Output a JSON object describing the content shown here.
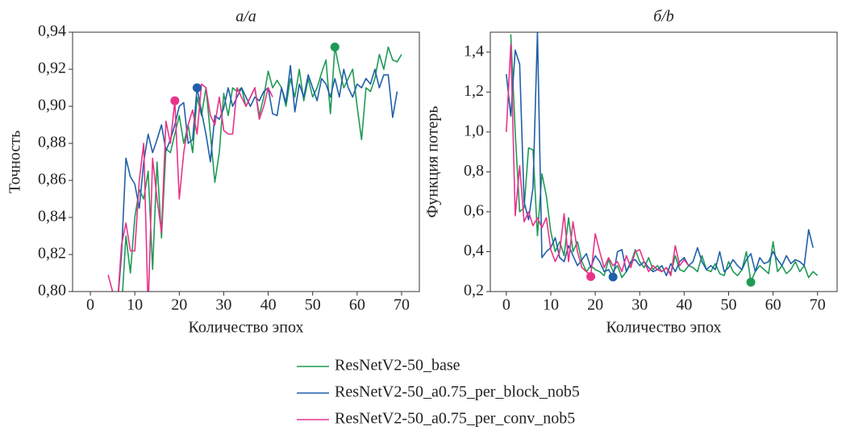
{
  "chart_data": [
    {
      "type": "line",
      "title": "a/a",
      "xlabel": "Количество эпох",
      "ylabel": "Точность",
      "x": [
        0,
        1,
        2,
        3,
        4,
        5,
        6,
        7,
        8,
        9,
        10,
        11,
        12,
        13,
        14,
        15,
        16,
        17,
        18,
        19,
        20,
        21,
        22,
        23,
        24,
        25,
        26,
        27,
        28,
        29,
        30,
        31,
        32,
        33,
        34,
        35,
        36,
        37,
        38,
        39,
        40,
        41,
        42,
        43,
        44,
        45,
        46,
        47,
        48,
        49,
        50,
        51,
        52,
        53,
        54,
        55,
        56,
        57,
        58,
        59,
        60,
        61,
        62,
        63,
        64,
        65,
        66,
        67,
        68,
        69,
        70
      ],
      "series": [
        {
          "name": "ResNetV2-50_base",
          "color": "#1f9a55",
          "values": [
            null,
            null,
            null,
            null,
            null,
            null,
            null,
            0.79,
            0.83,
            0.81,
            0.84,
            0.855,
            0.85,
            0.865,
            0.812,
            0.87,
            0.829,
            0.877,
            0.875,
            0.885,
            0.895,
            0.88,
            0.89,
            0.875,
            0.905,
            0.895,
            0.91,
            0.885,
            0.859,
            0.875,
            0.907,
            0.895,
            0.91,
            0.908,
            0.91,
            0.9,
            0.905,
            0.91,
            0.895,
            0.905,
            0.919,
            0.91,
            0.914,
            0.91,
            0.9,
            0.915,
            0.905,
            0.92,
            0.903,
            0.915,
            0.905,
            0.91,
            0.918,
            0.925,
            0.896,
            0.932,
            0.92,
            0.91,
            0.915,
            0.92,
            0.9,
            0.882,
            0.91,
            0.908,
            0.915,
            0.928,
            0.92,
            0.932,
            0.925,
            0.924,
            0.928
          ]
        },
        {
          "name": "ResNetV2-50_a0.75_per_block_nob5",
          "color": "#1f5fa8",
          "values": [
            null,
            null,
            null,
            null,
            null,
            null,
            0.79,
            0.82,
            0.872,
            0.862,
            0.858,
            0.845,
            0.87,
            0.885,
            0.875,
            0.882,
            0.89,
            0.876,
            0.882,
            0.89,
            0.9,
            0.902,
            0.88,
            0.882,
            0.91,
            0.897,
            0.885,
            0.87,
            0.895,
            0.893,
            0.899,
            0.91,
            0.9,
            0.905,
            0.91,
            0.905,
            0.9,
            0.905,
            0.903,
            0.908,
            0.91,
            0.896,
            0.895,
            0.91,
            0.902,
            0.922,
            0.897,
            0.912,
            0.905,
            0.917,
            0.91,
            0.903,
            0.915,
            0.912,
            0.905,
            0.915,
            0.905,
            0.92,
            0.91,
            0.905,
            0.912,
            0.91,
            0.915,
            0.912,
            0.92,
            0.91,
            0.917,
            0.917,
            0.894,
            0.908,
            null
          ]
        },
        {
          "name": "ResNetV2-50_a0.75_per_conv_nob5",
          "color": "#e8338a",
          "values": [
            null,
            null,
            null,
            null,
            0.809,
            0.8,
            0.79,
            0.825,
            0.837,
            0.822,
            0.822,
            0.86,
            0.88,
            0.79,
            0.872,
            0.85,
            0.832,
            0.892,
            0.88,
            0.903,
            0.85,
            0.875,
            0.89,
            0.898,
            0.885,
            0.912,
            0.91,
            0.895,
            0.89,
            0.905,
            0.887,
            0.885,
            0.885,
            0.91,
            0.905,
            0.9,
            0.905,
            0.91,
            0.893,
            0.9,
            0.91,
            0.905,
            null,
            null,
            null,
            null,
            null,
            null,
            null,
            null,
            null,
            null,
            null,
            null,
            null,
            null,
            null,
            null,
            null,
            null,
            null,
            null,
            null,
            null,
            null,
            null,
            null,
            null,
            null,
            null,
            null
          ]
        }
      ],
      "markers": [
        {
          "x": 19,
          "y": 0.903,
          "color": "#e8338a"
        },
        {
          "x": 24,
          "y": 0.91,
          "color": "#1f5fa8"
        },
        {
          "x": 55,
          "y": 0.932,
          "color": "#1f9a55"
        }
      ],
      "xlim": [
        -4,
        74
      ],
      "xticks": [
        0,
        10,
        20,
        30,
        40,
        50,
        60,
        70
      ],
      "ylim": [
        0.8,
        0.94
      ],
      "yticks": [
        {
          "value": 0.8,
          "label": "0,80"
        },
        {
          "value": 0.82,
          "label": "0,82"
        },
        {
          "value": 0.84,
          "label": "0,84"
        },
        {
          "value": 0.86,
          "label": "0,86"
        },
        {
          "value": 0.88,
          "label": "0,88"
        },
        {
          "value": 0.9,
          "label": "0,90"
        },
        {
          "value": 0.92,
          "label": "0,92"
        },
        {
          "value": 0.94,
          "label": "0,94"
        }
      ]
    },
    {
      "type": "line",
      "title": "б/b",
      "xlabel": "Количество эпох",
      "ylabel": "Функция потерь",
      "x": [
        0,
        1,
        2,
        3,
        4,
        5,
        6,
        7,
        8,
        9,
        10,
        11,
        12,
        13,
        14,
        15,
        16,
        17,
        18,
        19,
        20,
        21,
        22,
        23,
        24,
        25,
        26,
        27,
        28,
        29,
        30,
        31,
        32,
        33,
        34,
        35,
        36,
        37,
        38,
        39,
        40,
        41,
        42,
        43,
        44,
        45,
        46,
        47,
        48,
        49,
        50,
        51,
        52,
        53,
        54,
        55,
        56,
        57,
        58,
        59,
        60,
        61,
        62,
        63,
        64,
        65,
        66,
        67,
        68,
        69,
        70
      ],
      "series": [
        {
          "name": "ResNetV2-50_base",
          "color": "#1f9a55",
          "values": [
            null,
            1.49,
            1.0,
            0.6,
            0.62,
            0.92,
            0.91,
            0.48,
            0.79,
            0.68,
            0.5,
            0.4,
            0.45,
            0.38,
            0.57,
            0.4,
            0.45,
            0.35,
            0.3,
            0.33,
            0.31,
            0.3,
            0.28,
            0.36,
            0.3,
            0.33,
            0.27,
            0.3,
            0.34,
            0.41,
            0.35,
            0.32,
            0.37,
            0.31,
            0.33,
            0.3,
            0.32,
            0.29,
            0.38,
            0.31,
            0.3,
            0.33,
            0.32,
            0.3,
            0.38,
            0.31,
            0.3,
            0.34,
            0.29,
            0.28,
            0.35,
            0.3,
            0.28,
            0.31,
            0.4,
            0.25,
            0.3,
            0.33,
            0.31,
            0.29,
            0.45,
            0.3,
            0.33,
            0.29,
            0.31,
            0.35,
            0.3,
            0.33,
            0.27,
            0.3,
            0.28
          ]
        },
        {
          "name": "ResNetV2-50_a0.75_per_block_nob5",
          "color": "#1f5fa8",
          "values": [
            1.29,
            1.08,
            1.41,
            1.34,
            0.65,
            0.56,
            0.72,
            1.5,
            0.37,
            0.4,
            0.42,
            0.47,
            0.37,
            0.35,
            0.43,
            0.38,
            0.33,
            0.36,
            0.39,
            0.32,
            0.38,
            0.35,
            0.3,
            0.31,
            0.27,
            0.4,
            0.41,
            0.3,
            0.35,
            0.36,
            0.33,
            0.35,
            0.32,
            0.3,
            0.31,
            0.33,
            0.28,
            0.34,
            0.3,
            0.35,
            0.37,
            0.33,
            0.35,
            0.42,
            0.35,
            0.31,
            0.33,
            0.31,
            0.4,
            0.3,
            0.32,
            0.36,
            0.33,
            0.31,
            0.36,
            0.39,
            0.3,
            0.37,
            0.34,
            0.35,
            0.4,
            0.36,
            0.33,
            0.38,
            0.34,
            0.36,
            0.35,
            0.33,
            0.51,
            0.42,
            null
          ]
        },
        {
          "name": "ResNetV2-50_a0.75_per_conv_nob5",
          "color": "#e8338a",
          "values": [
            1.0,
            1.44,
            0.58,
            0.83,
            0.55,
            0.6,
            0.53,
            0.57,
            0.52,
            0.57,
            0.41,
            0.35,
            0.4,
            0.59,
            0.35,
            0.55,
            0.4,
            0.32,
            0.3,
            0.28,
            0.49,
            0.4,
            0.32,
            0.37,
            0.33,
            0.35,
            0.3,
            0.38,
            0.32,
            0.4,
            0.41,
            0.35,
            0.3,
            0.33,
            0.31,
            0.3,
            0.32,
            0.28,
            0.43,
            0.33,
            0.36,
            0.33,
            null,
            null,
            null,
            null,
            null,
            null,
            null,
            null,
            null,
            null,
            null,
            null,
            null,
            null,
            null,
            null,
            null,
            null,
            null,
            null,
            null,
            null,
            null,
            null,
            null,
            null,
            null,
            null,
            null
          ]
        }
      ],
      "markers": [
        {
          "x": 19,
          "y": 0.275,
          "color": "#e8338a"
        },
        {
          "x": 24,
          "y": 0.273,
          "color": "#1f5fa8"
        },
        {
          "x": 55,
          "y": 0.247,
          "color": "#1f9a55"
        }
      ],
      "xlim": [
        -3.6,
        74.4
      ],
      "xticks": [
        0,
        10,
        20,
        30,
        40,
        50,
        60,
        70
      ],
      "ylim": [
        0.2,
        1.5
      ],
      "yticks": [
        {
          "value": 0.2,
          "label": "0,2"
        },
        {
          "value": 0.4,
          "label": "0,4"
        },
        {
          "value": 0.6,
          "label": "0,6"
        },
        {
          "value": 0.8,
          "label": "0,8"
        },
        {
          "value": 1.0,
          "label": "1,0"
        },
        {
          "value": 1.2,
          "label": "1,2"
        },
        {
          "value": 1.4,
          "label": "1,4"
        }
      ]
    }
  ]
}
